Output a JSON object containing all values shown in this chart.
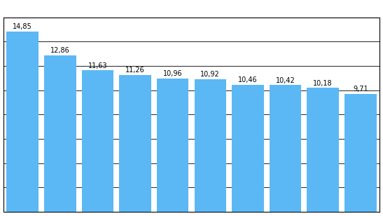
{
  "values": [
    14.85,
    12.86,
    11.63,
    11.26,
    10.96,
    10.92,
    10.46,
    10.42,
    10.18,
    9.71
  ],
  "labels": [
    "14,85",
    "12,86",
    "11,63",
    "11,26",
    "10,96",
    "10,92",
    "10,46",
    "10,42",
    "10,18",
    "9,71"
  ],
  "bar_color": "#5BB8F5",
  "background_color": "#ffffff",
  "ylim": [
    0,
    16
  ],
  "yticks": [
    0,
    2,
    4,
    6,
    8,
    10,
    12,
    14,
    16
  ],
  "grid_color": "#000000",
  "label_fontsize": 7,
  "bar_width": 0.85,
  "border_color": "#000000"
}
